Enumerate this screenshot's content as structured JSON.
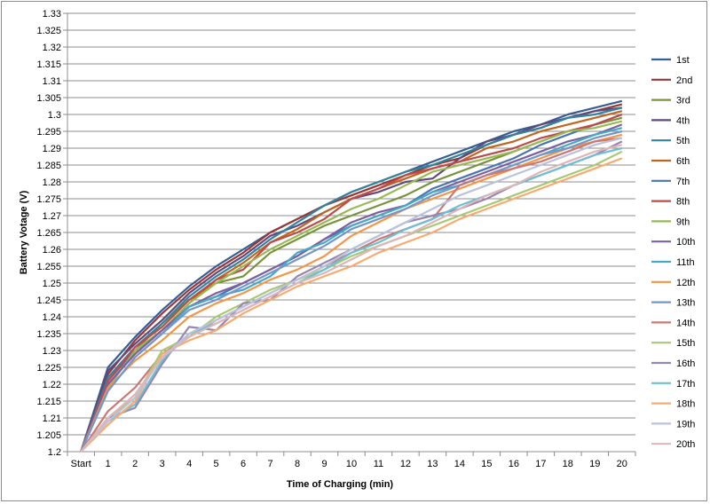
{
  "chart_data": {
    "type": "line",
    "title": "",
    "xlabel": "Time of Charging (min)",
    "ylabel": "Battery Votage (V)",
    "categories": [
      "Start",
      "1",
      "2",
      "3",
      "4",
      "5",
      "6",
      "7",
      "8",
      "9",
      "10",
      "11",
      "12",
      "13",
      "14",
      "15",
      "16",
      "17",
      "18",
      "19",
      "20"
    ],
    "ylim": [
      1.2,
      1.33
    ],
    "y_ticks": [
      "1.2",
      "1.205",
      "1.21",
      "1.215",
      "1.22",
      "1.225",
      "1.23",
      "1.235",
      "1.24",
      "1.245",
      "1.25",
      "1.255",
      "1.26",
      "1.265",
      "1.27",
      "1.275",
      "1.28",
      "1.285",
      "1.29",
      "1.295",
      "1.3",
      "1.305",
      "1.31",
      "1.315",
      "1.32",
      "1.325",
      "1.33"
    ],
    "grid": "horizontal",
    "legend_position": "right",
    "series": [
      {
        "name": "1st",
        "color": "#365e96",
        "values": [
          1.2,
          1.225,
          1.234,
          1.242,
          1.249,
          1.255,
          1.26,
          1.265,
          1.269,
          1.273,
          1.277,
          1.28,
          1.283,
          1.286,
          1.289,
          1.292,
          1.295,
          1.297,
          1.3,
          1.302,
          1.304
        ]
      },
      {
        "name": "2nd",
        "color": "#983735",
        "values": [
          1.2,
          1.223,
          1.233,
          1.241,
          1.248,
          1.254,
          1.259,
          1.265,
          1.269,
          1.273,
          1.276,
          1.279,
          1.282,
          1.285,
          1.287,
          1.291,
          1.294,
          1.296,
          1.299,
          1.301,
          1.303
        ]
      },
      {
        "name": "3rd",
        "color": "#77933c",
        "values": [
          1.2,
          1.219,
          1.23,
          1.238,
          1.245,
          1.25,
          1.252,
          1.259,
          1.263,
          1.267,
          1.27,
          1.273,
          1.276,
          1.28,
          1.283,
          1.286,
          1.289,
          1.292,
          1.295,
          1.297,
          1.299
        ]
      },
      {
        "name": "4th",
        "color": "#5f4a7e",
        "values": [
          1.2,
          1.224,
          1.232,
          1.239,
          1.247,
          1.253,
          1.258,
          1.264,
          1.267,
          1.271,
          1.275,
          1.277,
          1.28,
          1.281,
          1.287,
          1.292,
          1.294,
          1.297,
          1.299,
          1.301,
          1.302
        ]
      },
      {
        "name": "5th",
        "color": "#31849b",
        "values": [
          1.2,
          1.222,
          1.231,
          1.238,
          1.246,
          1.252,
          1.257,
          1.263,
          1.268,
          1.273,
          1.277,
          1.28,
          1.283,
          1.285,
          1.288,
          1.291,
          1.294,
          1.296,
          1.299,
          1.3,
          1.302
        ]
      },
      {
        "name": "6th",
        "color": "#c0651f",
        "values": [
          1.2,
          1.22,
          1.229,
          1.236,
          1.244,
          1.251,
          1.256,
          1.262,
          1.266,
          1.271,
          1.275,
          1.278,
          1.281,
          1.284,
          1.286,
          1.29,
          1.292,
          1.295,
          1.297,
          1.299,
          1.301
        ]
      },
      {
        "name": "7th",
        "color": "#4a74b6",
        "values": [
          1.2,
          1.221,
          1.23,
          1.236,
          1.243,
          1.246,
          1.25,
          1.254,
          1.258,
          1.263,
          1.267,
          1.27,
          1.273,
          1.278,
          1.281,
          1.284,
          1.287,
          1.291,
          1.294,
          1.297,
          1.3
        ]
      },
      {
        "name": "8th",
        "color": "#be4b48",
        "values": [
          1.2,
          1.221,
          1.231,
          1.237,
          1.245,
          1.251,
          1.254,
          1.262,
          1.265,
          1.269,
          1.275,
          1.278,
          1.282,
          1.284,
          1.286,
          1.288,
          1.29,
          1.293,
          1.295,
          1.297,
          1.3
        ]
      },
      {
        "name": "9th",
        "color": "#98b954",
        "values": [
          1.2,
          1.219,
          1.23,
          1.236,
          1.244,
          1.25,
          1.255,
          1.26,
          1.264,
          1.268,
          1.272,
          1.275,
          1.279,
          1.283,
          1.285,
          1.287,
          1.289,
          1.292,
          1.295,
          1.296,
          1.298
        ]
      },
      {
        "name": "10th",
        "color": "#7d60a0",
        "values": [
          1.2,
          1.22,
          1.229,
          1.236,
          1.243,
          1.247,
          1.25,
          1.254,
          1.258,
          1.263,
          1.268,
          1.271,
          1.273,
          1.277,
          1.28,
          1.283,
          1.286,
          1.289,
          1.292,
          1.294,
          1.297
        ]
      },
      {
        "name": "11th",
        "color": "#46aac5",
        "values": [
          1.2,
          1.218,
          1.228,
          1.235,
          1.243,
          1.246,
          1.248,
          1.252,
          1.259,
          1.262,
          1.267,
          1.27,
          1.273,
          1.277,
          1.279,
          1.282,
          1.285,
          1.288,
          1.291,
          1.294,
          1.296
        ]
      },
      {
        "name": "12th",
        "color": "#f69545",
        "values": [
          1.2,
          1.219,
          1.227,
          1.233,
          1.24,
          1.244,
          1.247,
          1.251,
          1.254,
          1.258,
          1.264,
          1.268,
          1.272,
          1.275,
          1.278,
          1.281,
          1.284,
          1.287,
          1.29,
          1.292,
          1.294
        ]
      },
      {
        "name": "13th",
        "color": "#7596c9",
        "values": [
          1.2,
          1.218,
          1.228,
          1.235,
          1.242,
          1.245,
          1.249,
          1.253,
          1.257,
          1.261,
          1.266,
          1.269,
          1.272,
          1.276,
          1.279,
          1.282,
          1.285,
          1.288,
          1.29,
          1.293,
          1.295
        ]
      },
      {
        "name": "14th",
        "color": "#cc7775",
        "values": [
          1.2,
          1.212,
          1.219,
          1.229,
          1.234,
          1.239,
          1.243,
          1.247,
          1.251,
          1.255,
          1.259,
          1.263,
          1.266,
          1.269,
          1.279,
          1.282,
          1.284,
          1.286,
          1.289,
          1.292,
          1.293
        ]
      },
      {
        "name": "15th",
        "color": "#a9c874",
        "values": [
          1.2,
          1.21,
          1.216,
          1.23,
          1.234,
          1.24,
          1.244,
          1.248,
          1.251,
          1.254,
          1.258,
          1.261,
          1.264,
          1.267,
          1.27,
          1.273,
          1.276,
          1.279,
          1.282,
          1.285,
          1.289
        ]
      },
      {
        "name": "16th",
        "color": "#9985b0",
        "values": [
          1.2,
          1.21,
          1.213,
          1.226,
          1.237,
          1.236,
          1.244,
          1.245,
          1.252,
          1.256,
          1.26,
          1.264,
          1.268,
          1.27,
          1.272,
          1.275,
          1.279,
          1.282,
          1.285,
          1.288,
          1.292
        ]
      },
      {
        "name": "17th",
        "color": "#6cbfd5",
        "values": [
          1.2,
          1.209,
          1.214,
          1.227,
          1.235,
          1.238,
          1.242,
          1.246,
          1.25,
          1.254,
          1.259,
          1.262,
          1.266,
          1.269,
          1.273,
          1.276,
          1.279,
          1.282,
          1.285,
          1.288,
          1.29
        ]
      },
      {
        "name": "18th",
        "color": "#f8aa70",
        "values": [
          1.2,
          1.208,
          1.215,
          1.229,
          1.233,
          1.236,
          1.241,
          1.245,
          1.249,
          1.252,
          1.255,
          1.259,
          1.262,
          1.265,
          1.269,
          1.272,
          1.275,
          1.278,
          1.281,
          1.284,
          1.287
        ]
      },
      {
        "name": "19th",
        "color": "#b9c3dc",
        "values": [
          1.2,
          1.209,
          1.216,
          1.228,
          1.235,
          1.239,
          1.243,
          1.247,
          1.251,
          1.255,
          1.26,
          1.264,
          1.268,
          1.272,
          1.276,
          1.279,
          1.282,
          1.285,
          1.288,
          1.291,
          1.293
        ]
      },
      {
        "name": "20th",
        "color": "#ddb7b7",
        "values": [
          1.2,
          1.21,
          1.217,
          1.228,
          1.234,
          1.238,
          1.242,
          1.246,
          1.25,
          1.253,
          1.257,
          1.261,
          1.264,
          1.268,
          1.272,
          1.276,
          1.279,
          1.283,
          1.286,
          1.289,
          1.291
        ]
      }
    ]
  }
}
